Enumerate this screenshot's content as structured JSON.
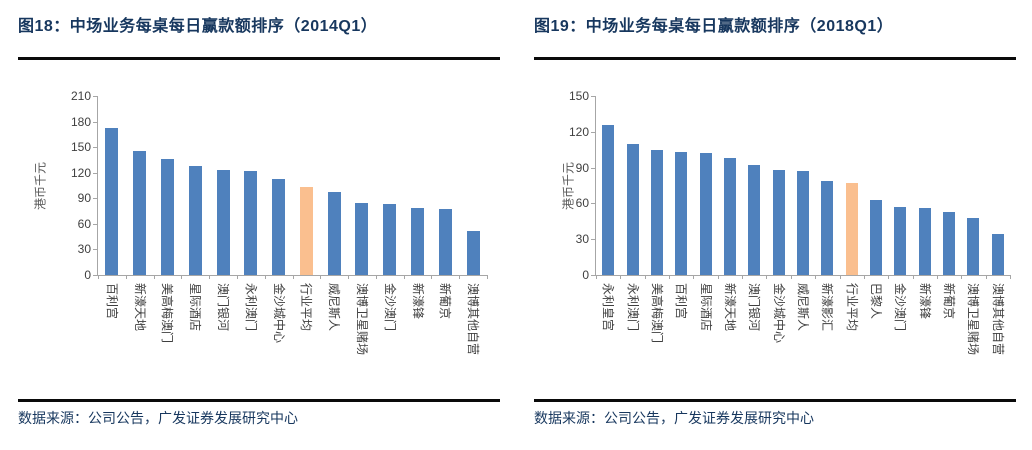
{
  "colors": {
    "title_text": "#17375E",
    "source_text": "#17375E",
    "divider": "#0a0a0a",
    "bar_blue": "#4F81BD",
    "bar_highlight_orange": "#FABF8F",
    "axis_gray": "#A6A6A6",
    "tick_label_gray": "#3f3f3f"
  },
  "chart_data": [
    {
      "type": "bar",
      "title": "图18：中场业务每桌每日赢款额排序（2014Q1）",
      "ylabel": "港币千元",
      "xlabel": "",
      "ylim": [
        0,
        210
      ],
      "yticks": [
        0,
        30,
        60,
        90,
        120,
        150,
        180,
        210
      ],
      "grid": false,
      "legend": "none",
      "categories": [
        "百利宫",
        "新濠天地",
        "美高梅澳门",
        "星际酒店",
        "澳门银河",
        "永利澳门",
        "金沙城中心",
        "行业平均",
        "威尼斯人",
        "澳博卫星赌场",
        "金沙澳门",
        "新濠锋",
        "新葡京",
        "澳博其他自营"
      ],
      "values": [
        172,
        146,
        136,
        128,
        123,
        122,
        113,
        103,
        97,
        85,
        83,
        79,
        77,
        52
      ],
      "highlight_index": 7,
      "highlight_category": "行业平均",
      "bar_color": "#4F81BD",
      "highlight_color": "#FABF8F",
      "source": "数据来源：公司公告，广发证券发展研究中心"
    },
    {
      "type": "bar",
      "title": "图19：中场业务每桌每日赢款额排序（2018Q1）",
      "ylabel": "港币千元",
      "xlabel": "",
      "ylim": [
        0,
        150
      ],
      "yticks": [
        0,
        30,
        60,
        90,
        120,
        150
      ],
      "grid": false,
      "legend": "none",
      "categories": [
        "永利皇宫",
        "永利澳门",
        "美高梅澳门",
        "百利宫",
        "星际酒店",
        "新濠天地",
        "澳门银河",
        "金沙城中心",
        "威尼斯人",
        "新濠影汇",
        "行业平均",
        "巴黎人",
        "金沙澳门",
        "新濠锋",
        "新葡京",
        "澳博卫星赌场",
        "澳博其他自营"
      ],
      "values": [
        126,
        110,
        105,
        103,
        102,
        98,
        92,
        88,
        87,
        79,
        77,
        63,
        57,
        56,
        53,
        48,
        34
      ],
      "highlight_index": 10,
      "highlight_category": "行业平均",
      "bar_color": "#4F81BD",
      "highlight_color": "#FABF8F",
      "source": "数据来源：公司公告，广发证券发展研究中心"
    }
  ]
}
